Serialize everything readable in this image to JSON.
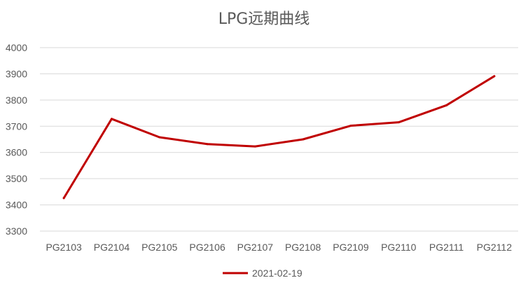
{
  "chart_data": {
    "type": "line",
    "title": "LPG远期曲线",
    "xlabel": "",
    "ylabel": "",
    "categories": [
      "PG2103",
      "PG2104",
      "PG2105",
      "PG2106",
      "PG2107",
      "PG2108",
      "PG2109",
      "PG2110",
      "PG2111",
      "PG2112"
    ],
    "series": [
      {
        "name": "2021-02-19",
        "color": "#c00000",
        "values": [
          3426,
          3728,
          3658,
          3632,
          3623,
          3650,
          3702,
          3715,
          3780,
          3891
        ]
      }
    ],
    "ylim": [
      3300,
      4000
    ],
    "yticks": [
      3300,
      3400,
      3500,
      3600,
      3700,
      3800,
      3900,
      4000
    ],
    "grid": true,
    "legend_position": "bottom"
  }
}
